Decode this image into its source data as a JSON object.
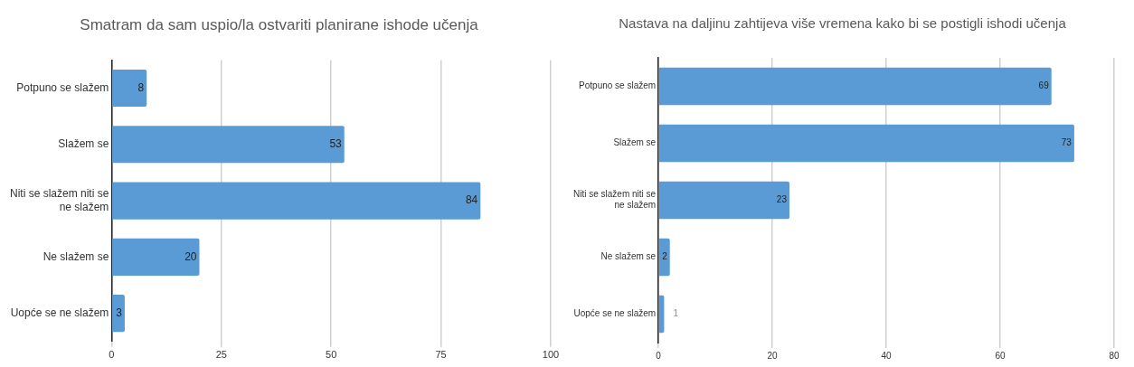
{
  "chart_data": [
    {
      "type": "bar",
      "title": "Smatram da sam uspio/la ostvariti planirane ishode učenja",
      "orientation": "horizontal",
      "categories": [
        "Potpuno se slažem",
        "Slažem se",
        "Niti se slažem niti se ne slažem",
        "Ne slažem se",
        "Uopće se ne slažem"
      ],
      "values": [
        8,
        53,
        84,
        20,
        3
      ],
      "color": "#5b9bd5",
      "xlim": [
        0,
        100
      ],
      "xticks": [
        0,
        25,
        50,
        75,
        100
      ],
      "grid": "x",
      "data_labels": true,
      "legend": false
    },
    {
      "type": "bar",
      "title": "Nastava na daljinu zahtijeva više vremena kako bi se postigli ishodi učenja",
      "orientation": "horizontal",
      "categories": [
        "Potpuno se slažem",
        "Slažem se",
        "Niti se slažem niti se ne slažem",
        "Ne slažem se",
        "Uopće se ne slažem"
      ],
      "values": [
        69,
        73,
        23,
        2,
        1
      ],
      "color": "#5b9bd5",
      "xlim": [
        0,
        80
      ],
      "xticks": [
        0,
        20,
        40,
        60,
        80
      ],
      "grid": "x",
      "data_labels": true,
      "legend": false
    }
  ]
}
